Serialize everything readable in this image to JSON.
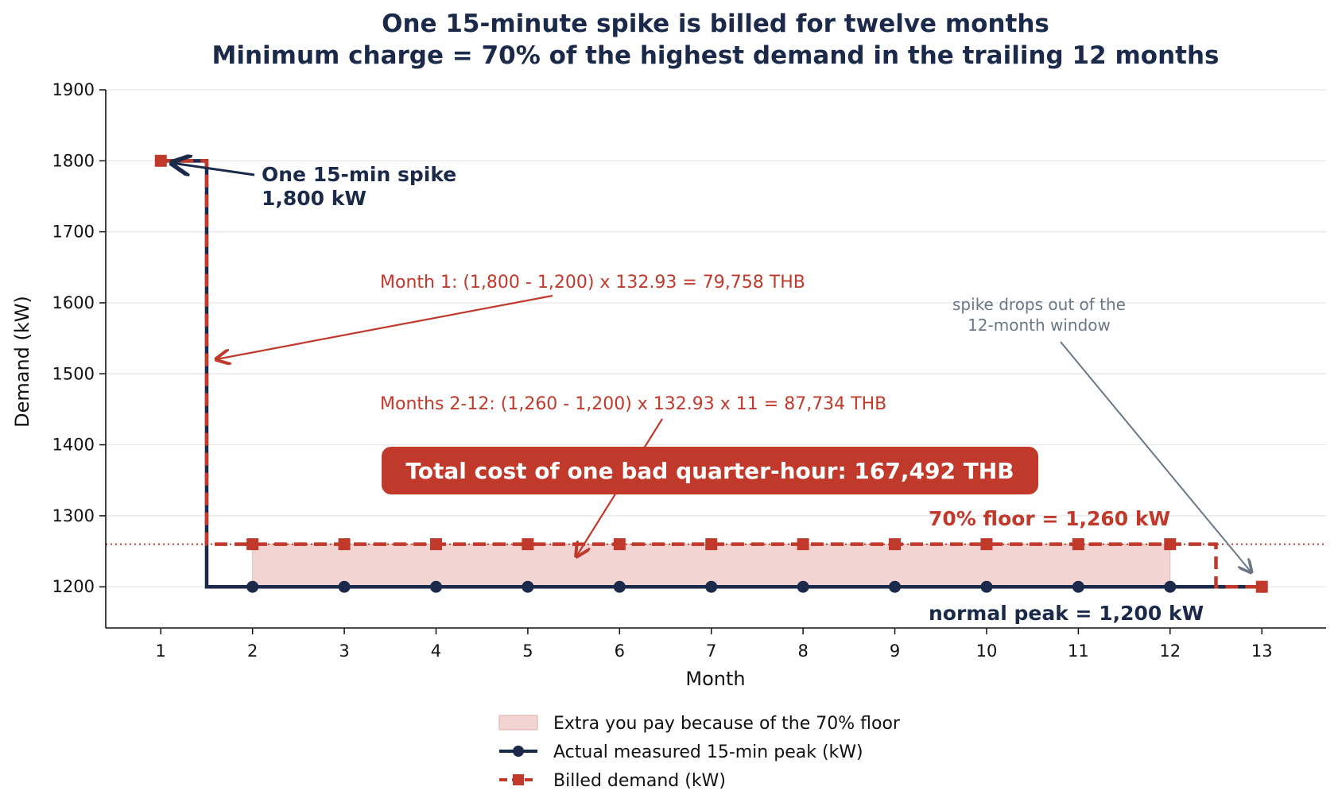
{
  "chart_data": {
    "type": "line",
    "title": "One 15-minute spike is billed for twelve months",
    "subtitle": "Minimum charge = 70% of the highest demand in the trailing 12 months",
    "xlabel": "Month",
    "ylabel": "Demand (kW)",
    "xlim": [
      0.4,
      13.7
    ],
    "ylim": [
      1142,
      1900
    ],
    "x_ticks": [
      1,
      2,
      3,
      4,
      5,
      6,
      7,
      8,
      9,
      10,
      11,
      12,
      13
    ],
    "y_ticks": [
      1200,
      1300,
      1400,
      1500,
      1600,
      1700,
      1800,
      1900
    ],
    "grid": "horizontal",
    "legend_position": "bottom-center",
    "series": [
      {
        "name": "Actual measured 15-min peak (kW)",
        "x": [
          1,
          2,
          3,
          4,
          5,
          6,
          7,
          8,
          9,
          10,
          11,
          12,
          13
        ],
        "values": [
          1800,
          1200,
          1200,
          1200,
          1200,
          1200,
          1200,
          1200,
          1200,
          1200,
          1200,
          1200,
          1200
        ],
        "color": "#1b2a4a",
        "style": "solid-step",
        "marker": "circle"
      },
      {
        "name": "Billed demand (kW)",
        "x": [
          1,
          2,
          3,
          4,
          5,
          6,
          7,
          8,
          9,
          10,
          11,
          12,
          13
        ],
        "values": [
          1800,
          1260,
          1260,
          1260,
          1260,
          1260,
          1260,
          1260,
          1260,
          1260,
          1260,
          1260,
          1200
        ],
        "color": "#c0392b",
        "style": "dashed-step",
        "marker": "square"
      }
    ],
    "shaded_region": {
      "name": "Extra you pay because of the 70% floor",
      "x_range": [
        2,
        12
      ],
      "y_range": [
        1200,
        1260
      ],
      "color": "#f2d4d3"
    },
    "reference_line": {
      "y": 1260,
      "color": "#c0392b",
      "style": "dotted"
    },
    "annotations": {
      "spike_line1": "One 15-min spike",
      "spike_line2": "1,800 kW",
      "month1": "Month 1: (1,800 - 1,200) x 132.93 = 79,758 THB",
      "months2_12": "Months 2-12: (1,260 - 1,200) x 132.93 x 11 = 87,734 THB",
      "total": "Total cost of one bad quarter-hour:  167,492 THB",
      "floor": "70% floor = 1,260 kW",
      "normal": "normal peak = 1,200 kW",
      "drop_line1": "spike drops out of the",
      "drop_line2": "12-month window"
    }
  },
  "colors": {
    "navy": "#1b2a4a",
    "red": "#c0392b",
    "shade": "#f2d4d3",
    "gray": "#6b7687",
    "grid": "#e6e6e6"
  }
}
